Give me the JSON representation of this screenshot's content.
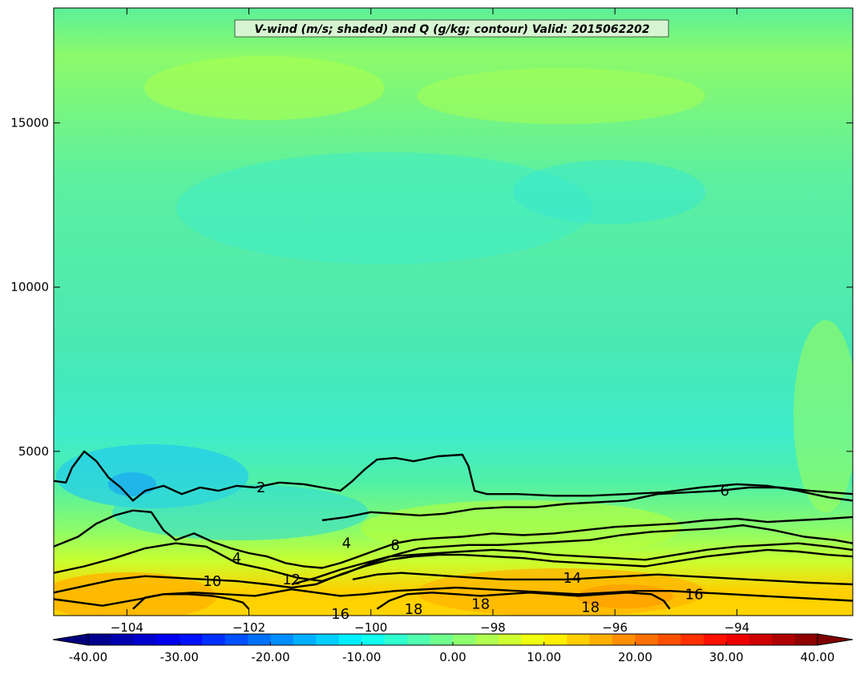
{
  "chart_data": {
    "type": "contourf",
    "title": "V-wind (m/s; shaded) and Q (g/kg; contour) Valid: 2015062202",
    "x_ticks": [
      -104,
      -102,
      -100,
      -98,
      -96,
      -94
    ],
    "x_tick_labels": [
      "−104",
      "−102",
      "−100",
      "−98",
      "−96",
      "−94"
    ],
    "xlim": [
      -105.2,
      -92.1
    ],
    "y_ticks": [
      5000,
      10000,
      15000
    ],
    "y_tick_labels": [
      "5000",
      "10000",
      "15000"
    ],
    "ylim": [
      0,
      18500
    ],
    "shaded_variable": "V-wind (m/s)",
    "colorbar": {
      "min": -40,
      "max": 40,
      "step": 2.5,
      "extend": "both",
      "tick_values": [
        -40,
        -30,
        -20,
        -10,
        0,
        10,
        20,
        30,
        40
      ],
      "tick_labels": [
        "-40.00",
        "-30.00",
        "-20.00",
        "-10.00",
        "0.00",
        "10.00",
        "20.00",
        "30.00",
        "40.00"
      ],
      "colormap": "jet"
    },
    "contour_variable": "Q (g/kg)",
    "contours": [
      {
        "level": 2,
        "label": "2",
        "points": [
          [
            -105.2,
            4100
          ],
          [
            -105,
            4050
          ],
          [
            -104.9,
            4500
          ],
          [
            -104.7,
            5000
          ],
          [
            -104.5,
            4700
          ],
          [
            -104.3,
            4200
          ],
          [
            -104.1,
            3900
          ],
          [
            -103.9,
            3500
          ],
          [
            -103.7,
            3800
          ],
          [
            -103.4,
            3950
          ],
          [
            -103.1,
            3700
          ],
          [
            -102.8,
            3900
          ],
          [
            -102.5,
            3800
          ],
          [
            -102.2,
            3950
          ],
          [
            -101.9,
            3900
          ],
          [
            -101.5,
            4050
          ],
          [
            -101.1,
            4000
          ],
          [
            -100.8,
            3900
          ],
          [
            -100.5,
            3800
          ],
          [
            -100.3,
            4100
          ],
          [
            -100.1,
            4450
          ],
          [
            -99.9,
            4750
          ],
          [
            -99.6,
            4800
          ],
          [
            -99.3,
            4700
          ],
          [
            -98.9,
            4850
          ],
          [
            -98.5,
            4900
          ],
          [
            -98.4,
            4550
          ],
          [
            -98.3,
            3800
          ],
          [
            -98.1,
            3700
          ],
          [
            -97.6,
            3700
          ],
          [
            -97,
            3650
          ],
          [
            -96.4,
            3650
          ],
          [
            -95.8,
            3700
          ],
          [
            -95.2,
            3750
          ],
          [
            -94.6,
            3900
          ],
          [
            -94,
            4000
          ],
          [
            -93.5,
            3950
          ],
          [
            -93,
            3800
          ],
          [
            -92.5,
            3600
          ],
          [
            -92.1,
            3500
          ]
        ]
      },
      {
        "level": 4,
        "label": "4",
        "points": [
          [
            -105.2,
            2100
          ],
          [
            -104.8,
            2400
          ],
          [
            -104.5,
            2800
          ],
          [
            -104.2,
            3050
          ],
          [
            -103.9,
            3200
          ],
          [
            -103.6,
            3150
          ],
          [
            -103.4,
            2600
          ],
          [
            -103.2,
            2300
          ],
          [
            -102.9,
            2500
          ],
          [
            -102.6,
            2250
          ],
          [
            -102.3,
            2050
          ],
          [
            -102,
            1900
          ],
          [
            -101.7,
            1800
          ],
          [
            -101.4,
            1600
          ],
          [
            -101.1,
            1500
          ],
          [
            -100.8,
            1450
          ],
          [
            -100.5,
            1600
          ],
          [
            -100.2,
            1800
          ],
          [
            -99.9,
            2000
          ],
          [
            -99.6,
            2200
          ],
          [
            -99.3,
            2300
          ],
          [
            -99,
            2350
          ],
          [
            -98.5,
            2400
          ],
          [
            -98,
            2500
          ],
          [
            -97.5,
            2450
          ],
          [
            -97,
            2500
          ],
          [
            -96.5,
            2600
          ],
          [
            -96,
            2700
          ],
          [
            -95.5,
            2750
          ],
          [
            -95,
            2800
          ],
          [
            -94.5,
            2900
          ],
          [
            -94,
            2950
          ],
          [
            -93.5,
            2850
          ],
          [
            -93,
            2900
          ],
          [
            -92.5,
            2950
          ],
          [
            -92.1,
            3000
          ]
        ]
      },
      {
        "level": 6,
        "label": "6",
        "points": [
          [
            -100.8,
            2900
          ],
          [
            -100.4,
            3000
          ],
          [
            -100,
            3150
          ],
          [
            -99.6,
            3100
          ],
          [
            -99.2,
            3050
          ],
          [
            -98.8,
            3100
          ],
          [
            -98.3,
            3250
          ],
          [
            -97.8,
            3300
          ],
          [
            -97.3,
            3300
          ],
          [
            -96.8,
            3400
          ],
          [
            -96.3,
            3450
          ],
          [
            -95.8,
            3500
          ],
          [
            -95.3,
            3700
          ],
          [
            -94.8,
            3750
          ],
          [
            -94.3,
            3800
          ],
          [
            -93.8,
            3900
          ],
          [
            -93.3,
            3900
          ],
          [
            -92.8,
            3800
          ],
          [
            -92.1,
            3700
          ]
        ]
      },
      {
        "level": 8,
        "label": "8",
        "points": [
          [
            -105.2,
            1300
          ],
          [
            -104.7,
            1500
          ],
          [
            -104.2,
            1750
          ],
          [
            -103.7,
            2050
          ],
          [
            -103.2,
            2200
          ],
          [
            -102.7,
            2100
          ],
          [
            -102.2,
            1600
          ],
          [
            -101.7,
            1400
          ],
          [
            -101.2,
            1150
          ],
          [
            -100.8,
            1050
          ],
          [
            -100.4,
            1300
          ],
          [
            -100,
            1600
          ],
          [
            -99.6,
            1850
          ],
          [
            -99.2,
            2050
          ],
          [
            -98.8,
            2100
          ],
          [
            -98.4,
            2150
          ],
          [
            -97.9,
            2150
          ],
          [
            -97.4,
            2200
          ],
          [
            -96.9,
            2250
          ],
          [
            -96.4,
            2300
          ],
          [
            -95.9,
            2450
          ],
          [
            -95.4,
            2550
          ],
          [
            -94.9,
            2600
          ],
          [
            -94.4,
            2650
          ],
          [
            -93.9,
            2750
          ],
          [
            -93.4,
            2600
          ],
          [
            -92.9,
            2400
          ],
          [
            -92.4,
            2300
          ],
          [
            -92.1,
            2200
          ]
        ]
      },
      {
        "level": 10,
        "label": "10",
        "points": [
          [
            -105.2,
            700
          ],
          [
            -104.7,
            900
          ],
          [
            -104.2,
            1100
          ],
          [
            -103.7,
            1200
          ],
          [
            -103.2,
            1150
          ],
          [
            -102.7,
            1100
          ],
          [
            -102.2,
            1050
          ],
          [
            -101.7,
            950
          ],
          [
            -101.3,
            850
          ],
          [
            -100.9,
            950
          ],
          [
            -100.5,
            1250
          ],
          [
            -100.1,
            1500
          ],
          [
            -99.7,
            1700
          ],
          [
            -99.3,
            1800
          ],
          [
            -98.9,
            1850
          ],
          [
            -98.5,
            1850
          ],
          [
            -98,
            1800
          ],
          [
            -97.5,
            1750
          ],
          [
            -97,
            1650
          ],
          [
            -96.5,
            1600
          ],
          [
            -96,
            1550
          ],
          [
            -95.5,
            1500
          ],
          [
            -95,
            1650
          ],
          [
            -94.5,
            1800
          ],
          [
            -94,
            1900
          ],
          [
            -93.5,
            2000
          ],
          [
            -93,
            1950
          ],
          [
            -92.5,
            1850
          ],
          [
            -92.1,
            1800
          ]
        ]
      },
      {
        "level": 12,
        "label": "12",
        "points": [
          [
            -101.3,
            950
          ],
          [
            -100.9,
            1150
          ],
          [
            -100.5,
            1400
          ],
          [
            -100.1,
            1600
          ],
          [
            -99.7,
            1800
          ],
          [
            -99.3,
            1850
          ],
          [
            -98.9,
            1900
          ],
          [
            -98.5,
            1950
          ],
          [
            -98,
            2000
          ],
          [
            -97.5,
            1950
          ],
          [
            -97,
            1850
          ],
          [
            -96.5,
            1800
          ],
          [
            -96,
            1750
          ],
          [
            -95.5,
            1700
          ],
          [
            -95,
            1850
          ],
          [
            -94.5,
            2000
          ],
          [
            -94,
            2100
          ],
          [
            -93.5,
            2150
          ],
          [
            -93,
            2200
          ],
          [
            -92.5,
            2100
          ],
          [
            -92.1,
            2000
          ]
        ]
      },
      {
        "level": 14,
        "label": "14",
        "points": [
          [
            -100.3,
            1100
          ],
          [
            -99.9,
            1250
          ],
          [
            -99.5,
            1300
          ],
          [
            -99.1,
            1250
          ],
          [
            -98.7,
            1200
          ],
          [
            -98.3,
            1150
          ],
          [
            -97.8,
            1100
          ],
          [
            -97.3,
            1100
          ],
          [
            -96.8,
            1100
          ],
          [
            -96.3,
            1150
          ],
          [
            -95.8,
            1200
          ],
          [
            -95.3,
            1250
          ],
          [
            -94.8,
            1200
          ],
          [
            -94.3,
            1150
          ],
          [
            -93.8,
            1100
          ],
          [
            -93.3,
            1050
          ],
          [
            -92.8,
            1000
          ],
          [
            -92.1,
            950
          ]
        ]
      },
      {
        "level": 16,
        "label": "16",
        "points": [
          [
            -105.2,
            500
          ],
          [
            -104.8,
            400
          ],
          [
            -104.4,
            300
          ],
          [
            -103.8,
            500
          ],
          [
            -103.4,
            650
          ],
          [
            -102.9,
            700
          ],
          [
            -102.4,
            650
          ],
          [
            -101.9,
            600
          ],
          [
            -101.6,
            700
          ],
          [
            -101.3,
            800
          ],
          [
            -100.9,
            700
          ],
          [
            -100.5,
            600
          ],
          [
            -100.1,
            650
          ],
          [
            -99.6,
            750
          ],
          [
            -99.1,
            800
          ],
          [
            -98.6,
            850
          ],
          [
            -98.1,
            800
          ],
          [
            -97.6,
            750
          ],
          [
            -97.1,
            700
          ],
          [
            -96.6,
            650
          ],
          [
            -96.1,
            700
          ],
          [
            -95.6,
            750
          ],
          [
            -95.1,
            750
          ],
          [
            -94.6,
            700
          ],
          [
            -94.1,
            650
          ],
          [
            -93.6,
            600
          ],
          [
            -93.1,
            550
          ],
          [
            -92.6,
            500
          ],
          [
            -92.1,
            450
          ]
        ]
      },
      {
        "level": 18,
        "label": "18",
        "points": [
          [
            -103.9,
            200
          ],
          [
            -103.7,
            550
          ],
          [
            -103.4,
            650
          ],
          [
            -103,
            650
          ],
          [
            -102.6,
            600
          ],
          [
            -102.3,
            500
          ],
          [
            -102.1,
            400
          ],
          [
            -102,
            200
          ]
        ]
      },
      {
        "level": 18,
        "label": "18",
        "points": [
          [
            -99.9,
            200
          ],
          [
            -99.7,
            450
          ],
          [
            -99.4,
            650
          ],
          [
            -99,
            700
          ],
          [
            -98.6,
            650
          ],
          [
            -98.2,
            600
          ],
          [
            -97.8,
            650
          ],
          [
            -97.4,
            700
          ],
          [
            -97,
            650
          ],
          [
            -96.6,
            600
          ],
          [
            -96.2,
            650
          ],
          [
            -95.8,
            700
          ],
          [
            -95.4,
            650
          ],
          [
            -95.2,
            450
          ],
          [
            -95.1,
            200
          ]
        ]
      }
    ],
    "contour_labels": [
      {
        "text": "2",
        "x": -101.8,
        "y": 3900
      },
      {
        "text": "4",
        "x": -102.2,
        "y": 1750
      },
      {
        "text": "4",
        "x": -100.4,
        "y": 2200
      },
      {
        "text": "6",
        "x": -94.2,
        "y": 3800
      },
      {
        "text": "8",
        "x": -99.6,
        "y": 2150
      },
      {
        "text": "10",
        "x": -102.6,
        "y": 1050
      },
      {
        "text": "12",
        "x": -101.3,
        "y": 1100
      },
      {
        "text": "14",
        "x": -96.7,
        "y": 1150
      },
      {
        "text": "16",
        "x": -100.5,
        "y": 50
      },
      {
        "text": "16",
        "x": -94.7,
        "y": 650
      },
      {
        "text": "18",
        "x": -99.3,
        "y": 200
      },
      {
        "text": "18",
        "x": -98.2,
        "y": 350
      },
      {
        "text": "18",
        "x": -96.4,
        "y": 250
      }
    ]
  }
}
